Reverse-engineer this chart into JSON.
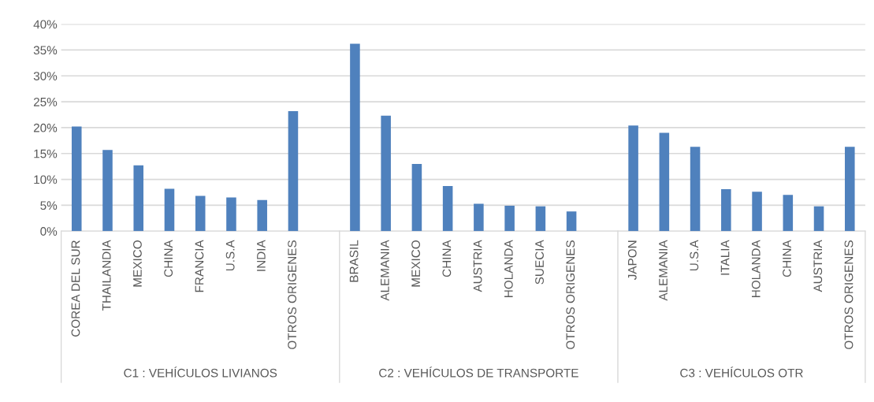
{
  "chart_data": {
    "type": "bar",
    "categories": [
      "COREA DEL SUR",
      "THAILANDIA",
      "MEXICO",
      "CHINA",
      "FRANCIA",
      "U.S.A",
      "INDIA",
      "OTROS ORIGENES",
      null,
      "BRASIL",
      "ALEMANIA",
      "MEXICO",
      "CHINA",
      "AUSTRIA",
      "HOLANDA",
      "SUECIA",
      "OTROS ORIGENES",
      null,
      "JAPON",
      "ALEMANIA",
      "U.S.A",
      "ITALIA",
      "HOLANDA",
      "CHINA",
      "AUSTRIA",
      "OTROS ORIGENES"
    ],
    "series": [
      {
        "color": "#4f81bd",
        "values": [
          20.2,
          15.7,
          12.7,
          8.2,
          6.8,
          6.5,
          6.0,
          23.2,
          null,
          36.2,
          22.3,
          13.0,
          8.7,
          5.3,
          4.9,
          4.8,
          3.8,
          null,
          20.4,
          19.0,
          16.3,
          8.1,
          7.6,
          7.0,
          4.8,
          16.3
        ]
      }
    ],
    "ylim": [
      0,
      40
    ],
    "yticks": [
      {
        "value": 0,
        "label": "0%"
      },
      {
        "value": 5,
        "label": "5%"
      },
      {
        "value": 10,
        "label": "10%"
      },
      {
        "value": 15,
        "label": "15%"
      },
      {
        "value": 20,
        "label": "20%"
      },
      {
        "value": 25,
        "label": "25%"
      },
      {
        "value": 30,
        "label": "30%"
      },
      {
        "value": 35,
        "label": "35%"
      },
      {
        "value": 40,
        "label": "40%"
      }
    ],
    "grid": "y",
    "legend": false,
    "annotations": [
      "C1 : VEHÍCULOS LIVIANOS",
      "C2 : VEHÍCULOS DE TRANSPORTE",
      "C3 : VEHÍCULOS OTR"
    ]
  }
}
